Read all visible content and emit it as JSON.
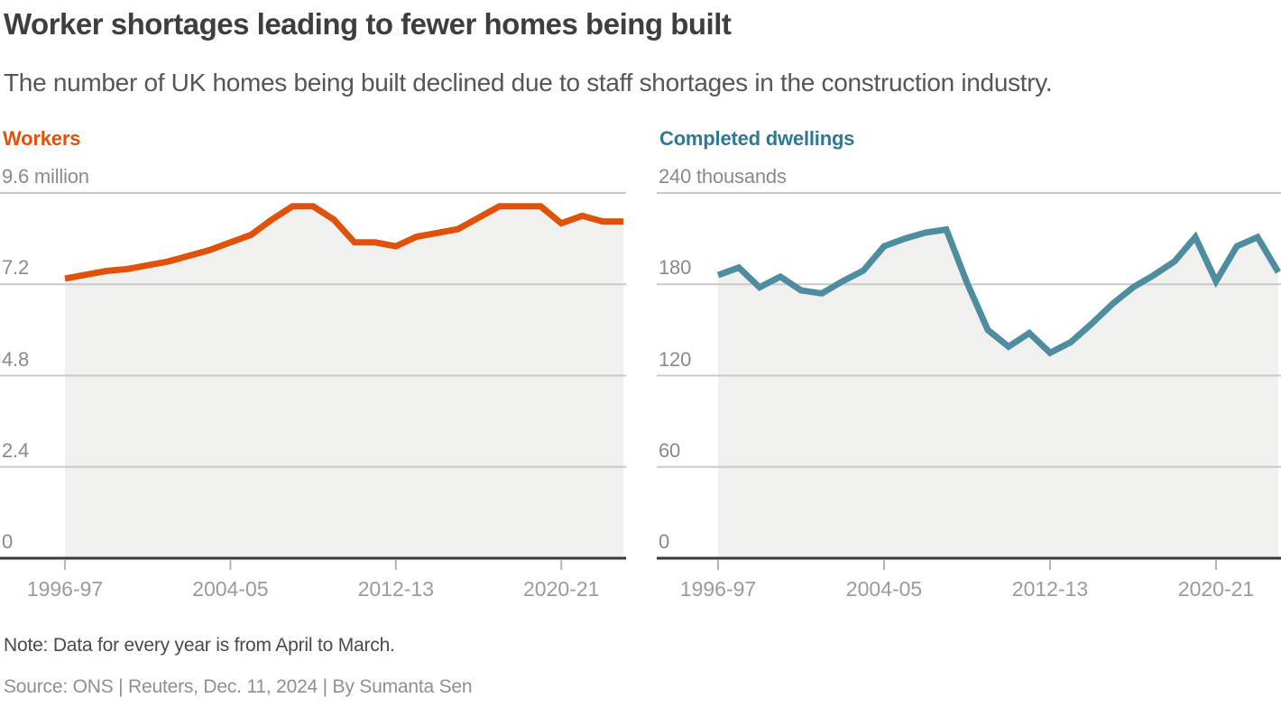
{
  "header": {
    "title": "Worker shortages leading to fewer homes being built",
    "subtitle": "The number of UK homes being built declined due to staff shortages in the construction industry."
  },
  "footer": {
    "note": "Note: Data for every year is from April to March.",
    "source": "Source: ONS | Reuters, Dec. 11, 2024 | By Sumanta Sen"
  },
  "style": {
    "grid_color": "#c9c9c9",
    "baseline_color": "#3a3a3a",
    "tick_color": "#b5b5b5",
    "fill_color": "#f0f0ef",
    "xlabel_color": "#9b9b9b",
    "ylabel_color": "#8a8a8a"
  },
  "chart_data": [
    {
      "type": "area",
      "title": "Workers",
      "title_color": "#e0520a",
      "line_color": "#e0520a",
      "ylabel": "million",
      "ytop_label": "9.6 million",
      "ylim": [
        0,
        9.6
      ],
      "yticks": [
        9.6,
        7.2,
        4.8,
        2.4,
        0
      ],
      "ytick_labels": [
        "9.6 million",
        "7.2",
        "4.8",
        "2.4",
        "0"
      ],
      "x": [
        "1996-97",
        "1997-98",
        "1998-99",
        "1999-00",
        "2000-01",
        "2001-02",
        "2002-03",
        "2003-04",
        "2004-05",
        "2005-06",
        "2006-07",
        "2007-08",
        "2008-09",
        "2009-10",
        "2010-11",
        "2011-12",
        "2012-13",
        "2013-14",
        "2014-15",
        "2015-16",
        "2016-17",
        "2017-18",
        "2018-19",
        "2019-20",
        "2020-21",
        "2021-22",
        "2022-23",
        "2023-24"
      ],
      "values": [
        7.35,
        7.45,
        7.55,
        7.6,
        7.7,
        7.8,
        7.95,
        8.1,
        8.3,
        8.5,
        8.9,
        9.25,
        9.25,
        8.9,
        8.3,
        8.3,
        8.2,
        8.45,
        8.55,
        8.65,
        8.95,
        9.25,
        9.25,
        9.25,
        8.8,
        9.0,
        8.85,
        8.85
      ],
      "xtick_indices": [
        0,
        8,
        16,
        24
      ],
      "xtick_labels": [
        "1996-97",
        "2004-05",
        "2012-13",
        "2020-21"
      ],
      "grid": true,
      "legend_position": "none"
    },
    {
      "type": "area",
      "title": "Completed dwellings",
      "title_color": "#2e7893",
      "line_color": "#4e8ca0",
      "ylabel": "thousands",
      "ytop_label": "240 thousands",
      "ylim": [
        0,
        240
      ],
      "yticks": [
        240,
        180,
        120,
        60,
        0
      ],
      "ytick_labels": [
        "240 thousands",
        "180",
        "120",
        "60",
        "0"
      ],
      "x": [
        "1996-97",
        "1997-98",
        "1998-99",
        "1999-00",
        "2000-01",
        "2001-02",
        "2002-03",
        "2003-04",
        "2004-05",
        "2005-06",
        "2006-07",
        "2007-08",
        "2008-09",
        "2009-10",
        "2010-11",
        "2011-12",
        "2012-13",
        "2013-14",
        "2014-15",
        "2015-16",
        "2016-17",
        "2017-18",
        "2018-19",
        "2019-20",
        "2020-21",
        "2021-22",
        "2022-23",
        "2023-24"
      ],
      "values": [
        186,
        191,
        178,
        185,
        176,
        174,
        182,
        189,
        205,
        210,
        214,
        216,
        181,
        150,
        139,
        148,
        135,
        142,
        154,
        167,
        178,
        186,
        195,
        211,
        182,
        205,
        211,
        188
      ],
      "xtick_indices": [
        0,
        8,
        16,
        24
      ],
      "xtick_labels": [
        "1996-97",
        "2004-05",
        "2012-13",
        "2020-21"
      ],
      "grid": true,
      "legend_position": "none"
    }
  ]
}
